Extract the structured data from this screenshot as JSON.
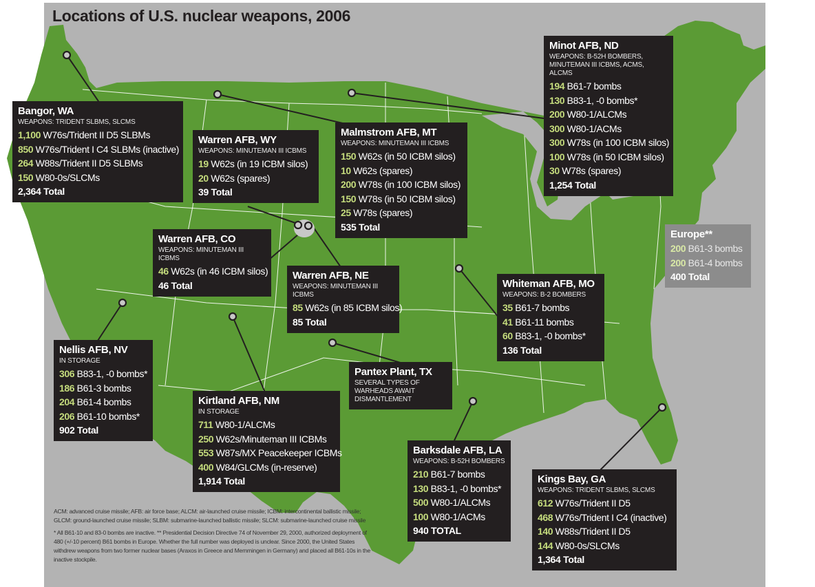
{
  "title": "Locations of U.S. nuclear weapons, 2006",
  "colors": {
    "land": "#5b9b35",
    "water": "#b3b3b3",
    "box": "#231f20",
    "number": "#c5dc7d",
    "europe_box": "#8c8c8c"
  },
  "sites": [
    {
      "key": "bangor",
      "name": "Bangor, WA",
      "subtitle": "WEAPONS: TRIDENT SLBMS, SLCMS",
      "rows": [
        {
          "n": "1,100",
          "d": "W76s/Trident II D5 SLBMs"
        },
        {
          "n": "850",
          "d": "W76s/Trident I C4 SLBMs (inactive)"
        },
        {
          "n": "264",
          "d": "W88s/Trident II D5 SLBMs"
        },
        {
          "n": "150",
          "d": "W80-0s/SLCMs"
        }
      ],
      "total": "2,364 Total"
    },
    {
      "key": "warren_wy",
      "name": "Warren AFB, WY",
      "subtitle": "WEAPONS: MINUTEMAN III ICBMS",
      "rows": [
        {
          "n": "19",
          "d": "W62s (in 19 ICBM silos)"
        },
        {
          "n": "20",
          "d": "W62s (spares)"
        }
      ],
      "total": "39 Total"
    },
    {
      "key": "malmstrom",
      "name": "Malmstrom AFB, MT",
      "subtitle": "WEAPONS: MINUTEMAN III ICBMS",
      "rows": [
        {
          "n": "150",
          "d": "W62s (in 50 ICBM silos)"
        },
        {
          "n": "10",
          "d": "W62s (spares)"
        },
        {
          "n": "200",
          "d": "W78s (in 100 ICBM silos)"
        },
        {
          "n": "150",
          "d": "W78s (in 50 ICBM silos)"
        },
        {
          "n": "25",
          "d": "W78s (spares)"
        }
      ],
      "total": "535 Total"
    },
    {
      "key": "minot",
      "name": "Minot AFB, ND",
      "subtitle": "WEAPONS: B-52H BOMBERS, MINUTEMAN III ICBMS, ACMS, ALCMS",
      "rows": [
        {
          "n": "194",
          "d": "B61-7 bombs"
        },
        {
          "n": "130",
          "d": "B83-1, -0 bombs*"
        },
        {
          "n": "200",
          "d": "W80-1/ALCMs"
        },
        {
          "n": "300",
          "d": "W80-1/ACMs"
        },
        {
          "n": "300",
          "d": "W78s (in 100 ICBM silos)"
        },
        {
          "n": "100",
          "d": "W78s (in 50 ICBM silos)"
        },
        {
          "n": "30",
          "d": "W78s (spares)"
        }
      ],
      "total": "1,254 Total"
    },
    {
      "key": "warren_co",
      "name": "Warren AFB, CO",
      "subtitle": "WEAPONS: MINUTEMAN III ICBMS",
      "rows": [
        {
          "n": "46",
          "d": "W62s (in 46 ICBM silos)"
        }
      ],
      "total": "46 Total"
    },
    {
      "key": "warren_ne",
      "name": "Warren AFB, NE",
      "subtitle": "WEAPONS: MINUTEMAN III ICBMS",
      "rows": [
        {
          "n": "85",
          "d": "W62s (in 85 ICBM silos)"
        }
      ],
      "total": "85 Total"
    },
    {
      "key": "europe",
      "name": "Europe**",
      "subtitle": "",
      "rows": [
        {
          "n": "200",
          "d": "B61-3 bombs"
        },
        {
          "n": "200",
          "d": "B61-4 bombs"
        }
      ],
      "total": "400 Total"
    },
    {
      "key": "whiteman",
      "name": "Whiteman AFB, MO",
      "subtitle": "WEAPONS: B-2 BOMBERS",
      "rows": [
        {
          "n": "35",
          "d": "B61-7 bombs"
        },
        {
          "n": "41",
          "d": "B61-11 bombs"
        },
        {
          "n": "60",
          "d": "B83-1, -0 bombs*"
        }
      ],
      "total": "136 Total"
    },
    {
      "key": "nellis",
      "name": "Nellis AFB, NV",
      "subtitle": "IN STORAGE",
      "rows": [
        {
          "n": "306",
          "d": "B83-1, -0 bombs*"
        },
        {
          "n": "186",
          "d": "B61-3 bombs"
        },
        {
          "n": "204",
          "d": "B61-4 bombs"
        },
        {
          "n": "206",
          "d": "B61-10 bombs*"
        }
      ],
      "total": "902 Total"
    },
    {
      "key": "pantex",
      "name": "Pantex Plant, TX",
      "subtitle": "SEVERAL TYPES OF WARHEADS AWAIT DISMANTLEMENT",
      "rows": [],
      "total": ""
    },
    {
      "key": "kirtland",
      "name": "Kirtland AFB, NM",
      "subtitle": "IN STORAGE",
      "rows": [
        {
          "n": "711",
          "d": "W80-1/ALCMs"
        },
        {
          "n": "250",
          "d": "W62s/Minuteman III ICBMs"
        },
        {
          "n": "553",
          "d": "W87s/MX Peacekeeper ICBMs"
        },
        {
          "n": "400",
          "d": "W84/GLCMs (in-reserve)"
        }
      ],
      "total": "1,914 Total"
    },
    {
      "key": "barksdale",
      "name": "Barksdale AFB, LA",
      "subtitle": "WEAPONS: B-52H BOMBERS",
      "rows": [
        {
          "n": "210",
          "d": "B61-7 bombs"
        },
        {
          "n": "130",
          "d": "B83-1, -0 bombs*"
        },
        {
          "n": "500",
          "d": "W80-1/ALCMs"
        },
        {
          "n": "100",
          "d": "W80-1/ACMs"
        }
      ],
      "total": "940 TOTAL"
    },
    {
      "key": "kings_bay",
      "name": "Kings Bay, GA",
      "subtitle": "WEAPONS: TRIDENT SLBMS, SLCMS",
      "rows": [
        {
          "n": "612",
          "d": "W76s/Trident II D5"
        },
        {
          "n": "468",
          "d": "W76s/Trident I C4 (inactive)"
        },
        {
          "n": "140",
          "d": "W88s/Trident II D5"
        },
        {
          "n": "144",
          "d": "W80-0s/SLCMs"
        }
      ],
      "total": "1,364 Total"
    }
  ],
  "notes": {
    "glossary": "ACM: advanced cruise missile; AFB: air force base; ALCM: air-launched cruise missile; ICBM: intercontinental ballistic missile; GLCM: ground-launched cruise missile; SLBM: submarine-launched ballistic missile; SLCM: submarine-launched cruise missile",
    "footnote": "* All B61-10 and 83-0 bombs are inactive. ** Presidential Decision Directive 74 of November 29, 2000, authorized deployment of 480 (+/-10 percent) B61 bombs in Europe. Whether the full number was deployed is unclear. Since 2000, the United States withdrew weapons from two former nuclear bases (Araxos in Greece and Memmingen in Germany) and placed all B61-10s in the inactive stockpile."
  }
}
